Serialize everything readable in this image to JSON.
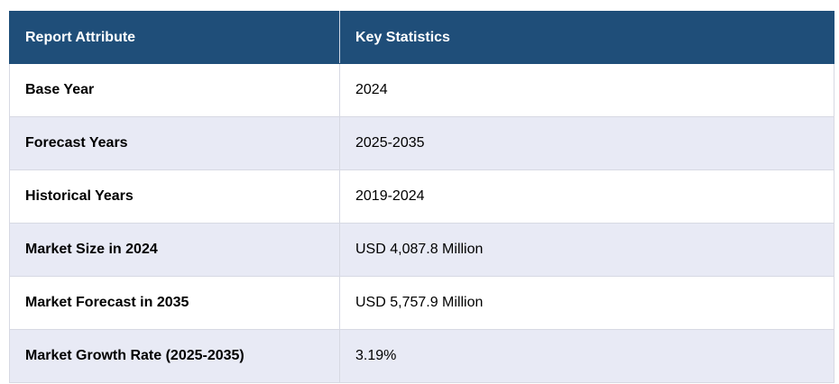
{
  "table": {
    "headers": [
      "Report Attribute",
      "Key Statistics"
    ],
    "rows": [
      {
        "attribute": "Base Year",
        "value": "2024"
      },
      {
        "attribute": "Forecast Years",
        "value": "2025-2035"
      },
      {
        "attribute": "Historical Years",
        "value": "2019-2024"
      },
      {
        "attribute": "Market Size in 2024",
        "value": "USD 4,087.8 Million"
      },
      {
        "attribute": "Market Forecast in 2035",
        "value": "USD 5,757.9 Million"
      },
      {
        "attribute": "Market Growth Rate (2025-2035)",
        "value": "3.19%"
      }
    ]
  },
  "colors": {
    "header_bg": "#1f4e79",
    "header_text": "#ffffff",
    "row_alt_bg": "#e8eaf5",
    "row_bg": "#ffffff"
  }
}
